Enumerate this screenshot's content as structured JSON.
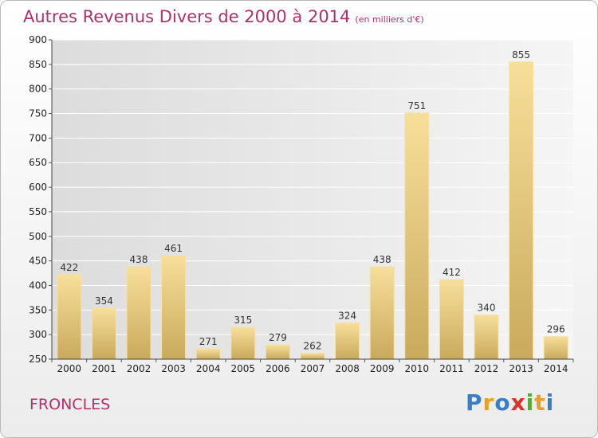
{
  "title": "Autres Revenus Divers de 2000 à 2014",
  "subtitle": "(en milliers d'€)",
  "commune": "FRONCLES",
  "logo": {
    "letters": [
      "P",
      "r",
      "o",
      "x",
      "i",
      "t",
      "i"
    ],
    "colors": [
      "#3a7fc4",
      "#e8a020",
      "#3a7fc4",
      "#d8342a",
      "#5aa83a",
      "#e8a020",
      "#3a7fc4"
    ]
  },
  "chart_data": {
    "type": "bar",
    "title": "Autres Revenus Divers de 2000 à 2014",
    "subtitle": "(en milliers d'€)",
    "xlabel": "",
    "ylabel": "",
    "categories": [
      "2000",
      "2001",
      "2002",
      "2003",
      "2004",
      "2005",
      "2006",
      "2007",
      "2008",
      "2009",
      "2010",
      "2011",
      "2012",
      "2013",
      "2014"
    ],
    "values": [
      422,
      354,
      438,
      461,
      271,
      315,
      279,
      262,
      324,
      438,
      751,
      412,
      340,
      855,
      296
    ],
    "ylim": [
      250,
      900
    ],
    "yticks": [
      250,
      300,
      350,
      400,
      450,
      500,
      550,
      600,
      650,
      700,
      750,
      800,
      850,
      900
    ],
    "grid": true,
    "bar_color": "#e8c878"
  }
}
